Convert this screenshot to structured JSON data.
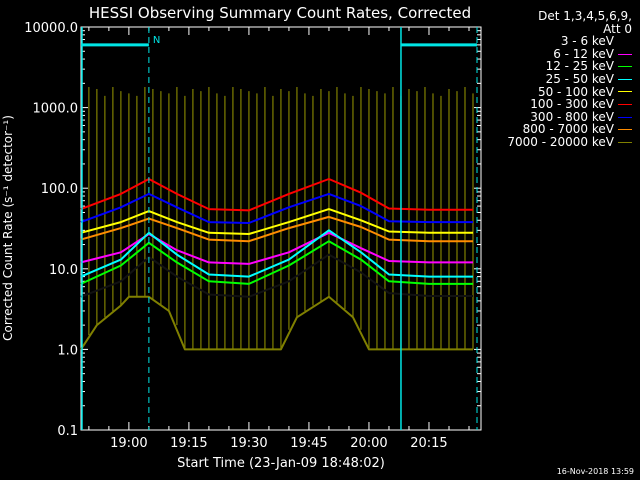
{
  "chart_data": {
    "type": "line",
    "title": "HESSI Observing Summary Count Rates, Corrected",
    "ylabel": "Corrected Count Rate (s⁻¹ detector⁻¹)",
    "xlabel": "Start Time (23-Jan-09 18:48:02)",
    "y_scale": "log",
    "ylim": [
      0.1,
      10000
    ],
    "xlim": [
      "18:48:02",
      "20:28:00"
    ],
    "x_ticks": [
      "19:00",
      "19:15",
      "19:30",
      "19:45",
      "20:00",
      "20:15"
    ],
    "y_ticks": [
      "0.1",
      "1.0",
      "10.0",
      "100.0",
      "1000.0",
      "10000.0"
    ],
    "grid": false,
    "legend_placement": "outside right",
    "legend_header": [
      "Det 1,3,4,5,6,9,",
      "Att 0"
    ],
    "series": [
      {
        "name": "3 - 6 keV",
        "color": "#000000",
        "x": [
          "18:48",
          "18:58",
          "19:05",
          "19:12",
          "19:20",
          "19:30",
          "19:40",
          "19:50",
          "19:58",
          "20:05",
          "20:15",
          "20:26"
        ],
        "values": [
          4.5,
          7,
          14,
          8,
          4.8,
          4.5,
          7,
          15,
          9,
          5,
          4.6,
          4.6
        ]
      },
      {
        "name": "6 - 12 keV",
        "color": "#ff00ff",
        "x": [
          "18:48",
          "18:58",
          "19:05",
          "19:12",
          "19:20",
          "19:30",
          "19:40",
          "19:50",
          "19:58",
          "20:05",
          "20:15",
          "20:26"
        ],
        "values": [
          12,
          16,
          27,
          17,
          12,
          11.5,
          16,
          28,
          18,
          12.5,
          12,
          12
        ]
      },
      {
        "name": "12 - 25 keV",
        "color": "#00ff00",
        "x": [
          "18:48",
          "18:58",
          "19:05",
          "19:12",
          "19:20",
          "19:30",
          "19:40",
          "19:50",
          "19:58",
          "20:05",
          "20:15",
          "20:26"
        ],
        "values": [
          6.5,
          11,
          21,
          12,
          7,
          6.5,
          11,
          22,
          13,
          7,
          6.5,
          6.5
        ]
      },
      {
        "name": "25 - 50 keV",
        "color": "#00ffff",
        "x": [
          "18:48",
          "18:58",
          "19:05",
          "19:12",
          "19:20",
          "19:30",
          "19:40",
          "19:50",
          "19:58",
          "20:05",
          "20:15",
          "20:26"
        ],
        "values": [
          8,
          13,
          28,
          15,
          8.5,
          8,
          13,
          30,
          16,
          8.5,
          8,
          8
        ]
      },
      {
        "name": "50 - 100 keV",
        "color": "#ffff00",
        "x": [
          "18:48",
          "18:58",
          "19:05",
          "19:12",
          "19:20",
          "19:30",
          "19:40",
          "19:50",
          "19:58",
          "20:05",
          "20:15",
          "20:26"
        ],
        "values": [
          28,
          38,
          52,
          38,
          28,
          27,
          38,
          55,
          40,
          29,
          28,
          28
        ]
      },
      {
        "name": "100 - 300 keV",
        "color": "#ff0000",
        "x": [
          "18:48",
          "18:58",
          "19:05",
          "19:12",
          "19:20",
          "19:30",
          "19:40",
          "19:50",
          "19:58",
          "20:05",
          "20:15",
          "20:26"
        ],
        "values": [
          55,
          85,
          130,
          85,
          55,
          53,
          85,
          130,
          88,
          56,
          54,
          54
        ]
      },
      {
        "name": "300 - 800 keV",
        "color": "#0000ff",
        "x": [
          "18:48",
          "18:58",
          "19:05",
          "19:12",
          "19:20",
          "19:30",
          "19:40",
          "19:50",
          "19:58",
          "20:05",
          "20:15",
          "20:26"
        ],
        "values": [
          38,
          58,
          85,
          58,
          38,
          37,
          58,
          85,
          60,
          39,
          38,
          38
        ]
      },
      {
        "name": "800 - 7000 keV",
        "color": "#ff8c00",
        "x": [
          "18:48",
          "18:58",
          "19:05",
          "19:12",
          "19:20",
          "19:30",
          "19:40",
          "19:50",
          "19:58",
          "20:05",
          "20:15",
          "20:26"
        ],
        "values": [
          23,
          32,
          42,
          32,
          23,
          22,
          32,
          44,
          33,
          23,
          22,
          22
        ]
      },
      {
        "name": "7000 - 20000 keV",
        "color": "#808000",
        "x": [
          "18:48",
          "18:52",
          "18:58",
          "19:00",
          "19:05",
          "19:10",
          "19:14",
          "19:20",
          "19:30",
          "19:38",
          "19:42",
          "19:50",
          "19:56",
          "20:00",
          "20:10",
          "20:26"
        ],
        "values": [
          1,
          2,
          3.5,
          4.5,
          4.5,
          3,
          1,
          1,
          1,
          1,
          2.5,
          4.5,
          2.5,
          1,
          1,
          1
        ]
      }
    ],
    "spikes": {
      "series": "7000 - 20000 keV",
      "x": [
        "18:50",
        "18:52",
        "18:54",
        "18:56",
        "18:58",
        "19:00",
        "19:02",
        "19:04",
        "19:06",
        "19:08",
        "19:10",
        "19:12",
        "19:14",
        "19:16",
        "19:18",
        "19:20",
        "19:22",
        "19:24",
        "19:26",
        "19:28",
        "19:30",
        "19:32",
        "19:34",
        "19:36",
        "19:38",
        "19:40",
        "19:42",
        "19:44",
        "19:46",
        "19:48",
        "19:50",
        "19:52",
        "19:54",
        "19:56",
        "19:58",
        "20:00",
        "20:02",
        "20:04",
        "20:06",
        "20:08",
        "20:10",
        "20:12",
        "20:14",
        "20:16",
        "20:18",
        "20:20",
        "20:22",
        "20:24",
        "20:26"
      ],
      "values": [
        1800,
        1700,
        1400,
        1800,
        1600,
        1500,
        1400,
        1800,
        1700,
        1600,
        1500,
        1800,
        1400,
        1700,
        1600,
        1800,
        1500,
        1400,
        1800,
        1700,
        1600,
        1500,
        1800,
        1400,
        1700,
        1600,
        1800,
        1500,
        1400,
        1700,
        1600,
        1800,
        1500,
        1400,
        1800,
        1700,
        1600,
        1500,
        1800,
        1400,
        1700,
        1600,
        1800,
        1500,
        1400,
        1700,
        1600,
        1800,
        1500
      ]
    },
    "annotations": [
      {
        "text": "N",
        "color": "#00e5e5",
        "x": "19:05"
      }
    ],
    "night_bars": {
      "color": "#00e5e5",
      "ranges": [
        [
          "18:48:02",
          "19:05:00"
        ],
        [
          "20:08:00",
          "20:27:00"
        ]
      ],
      "y": 6000
    },
    "vertical_lines": {
      "color": "#00e5e5",
      "solid": [
        "20:08"
      ],
      "dashed": [
        "19:05",
        "20:27"
      ]
    }
  },
  "timestamp": "16-Nov-2018 13:59"
}
